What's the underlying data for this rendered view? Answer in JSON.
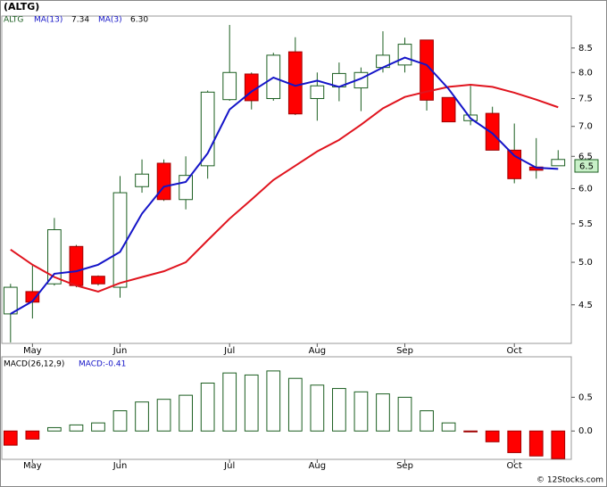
{
  "title": "(ALTG)",
  "copyright": "© 12Stocks.com",
  "chart_data": [
    {
      "type": "candlestick",
      "symbol": "ALTG",
      "log_scale": true,
      "categories": [
        null,
        "May",
        null,
        null,
        null,
        "Jun",
        null,
        null,
        null,
        null,
        "Jul",
        null,
        null,
        null,
        "Aug",
        null,
        null,
        null,
        "Sep",
        null,
        null,
        null,
        null,
        "Oct",
        null,
        null
      ],
      "open": [
        4.4,
        4.65,
        4.74,
        5.2,
        4.83,
        4.7,
        6.03,
        6.39,
        5.84,
        6.35,
        7.48,
        7.97,
        7.5,
        8.42,
        7.5,
        7.72,
        7.7,
        8.1,
        8.15,
        8.67,
        7.52,
        7.1,
        7.23,
        6.6,
        6.33,
        6.35
      ],
      "high": [
        4.74,
        4.96,
        5.58,
        5.22,
        4.84,
        6.19,
        6.45,
        6.45,
        6.5,
        7.65,
        9.0,
        8.0,
        8.4,
        8.73,
        8.0,
        8.2,
        8.1,
        8.86,
        8.72,
        8.67,
        7.52,
        7.74,
        7.35,
        7.05,
        6.8,
        6.6
      ],
      "low": [
        4.1,
        4.35,
        4.72,
        4.7,
        4.72,
        4.58,
        5.94,
        5.82,
        5.7,
        6.15,
        7.46,
        7.3,
        7.46,
        7.2,
        7.1,
        7.45,
        7.27,
        8.0,
        8.0,
        7.28,
        7.08,
        7.02,
        6.6,
        6.08,
        6.15,
        6.35
      ],
      "close": [
        4.7,
        4.53,
        5.42,
        4.72,
        4.74,
        5.94,
        6.22,
        5.84,
        6.2,
        7.62,
        8.0,
        7.46,
        8.35,
        7.22,
        7.74,
        7.98,
        8.0,
        8.35,
        8.58,
        7.47,
        7.08,
        7.2,
        6.6,
        6.15,
        6.28,
        6.45
      ],
      "up_color": "#ffffff",
      "down_color": "#ff0000",
      "outline_color": "#1b5e20",
      "series": [
        {
          "name": "MA(13)",
          "last_label": "7.34",
          "color": "#e0141e",
          "values": [
            5.16,
            4.97,
            4.82,
            4.72,
            4.65,
            4.75,
            4.82,
            4.89,
            5.0,
            5.28,
            5.57,
            5.84,
            6.13,
            6.35,
            6.58,
            6.77,
            7.03,
            7.32,
            7.53,
            7.63,
            7.72,
            7.76,
            7.72,
            7.61,
            7.48,
            7.34
          ]
        },
        {
          "name": "MA(3)",
          "last_label": "6.30",
          "color": "#1414c8",
          "values": [
            4.4,
            4.54,
            4.86,
            4.89,
            4.97,
            5.13,
            5.64,
            6.03,
            6.1,
            6.55,
            7.3,
            7.63,
            7.9,
            7.74,
            7.84,
            7.72,
            7.88,
            8.1,
            8.3,
            8.15,
            7.68,
            7.14,
            6.88,
            6.51,
            6.32,
            6.3
          ]
        }
      ],
      "last_price_label": "6.5",
      "ylim": [
        4.09,
        9.2
      ],
      "yticks": [
        4.5,
        {
          "value": 5,
          "label": "5.0"
        },
        5.5,
        {
          "value": 6,
          "label": "6.0"
        },
        6.5,
        {
          "value": 7,
          "label": "7.0"
        },
        7.5,
        {
          "value": 8,
          "label": "8.0"
        },
        8.5
      ]
    },
    {
      "type": "bar",
      "name": "MACD(26,12,9)",
      "last_label": "MACD:-0.41",
      "categories": [
        null,
        "May",
        null,
        null,
        null,
        "Jun",
        null,
        null,
        null,
        null,
        "Jul",
        null,
        null,
        null,
        "Aug",
        null,
        null,
        null,
        "Sep",
        null,
        null,
        null,
        null,
        "Oct",
        null,
        null
      ],
      "values": [
        -0.21,
        -0.12,
        0.05,
        0.09,
        0.12,
        0.3,
        0.43,
        0.47,
        0.53,
        0.71,
        0.86,
        0.83,
        0.89,
        0.78,
        0.68,
        0.63,
        0.58,
        0.55,
        0.5,
        0.3,
        0.12,
        -0.01,
        -0.16,
        -0.32,
        -0.37,
        -0.41
      ],
      "up_color": "#ffffff",
      "down_color": "#ff0000",
      "outline_color": "#1b5e20",
      "ylim": [
        -0.42,
        1.1
      ],
      "yticks": [
        {
          "value": 0,
          "label": "0.0"
        },
        0.5
      ]
    }
  ]
}
